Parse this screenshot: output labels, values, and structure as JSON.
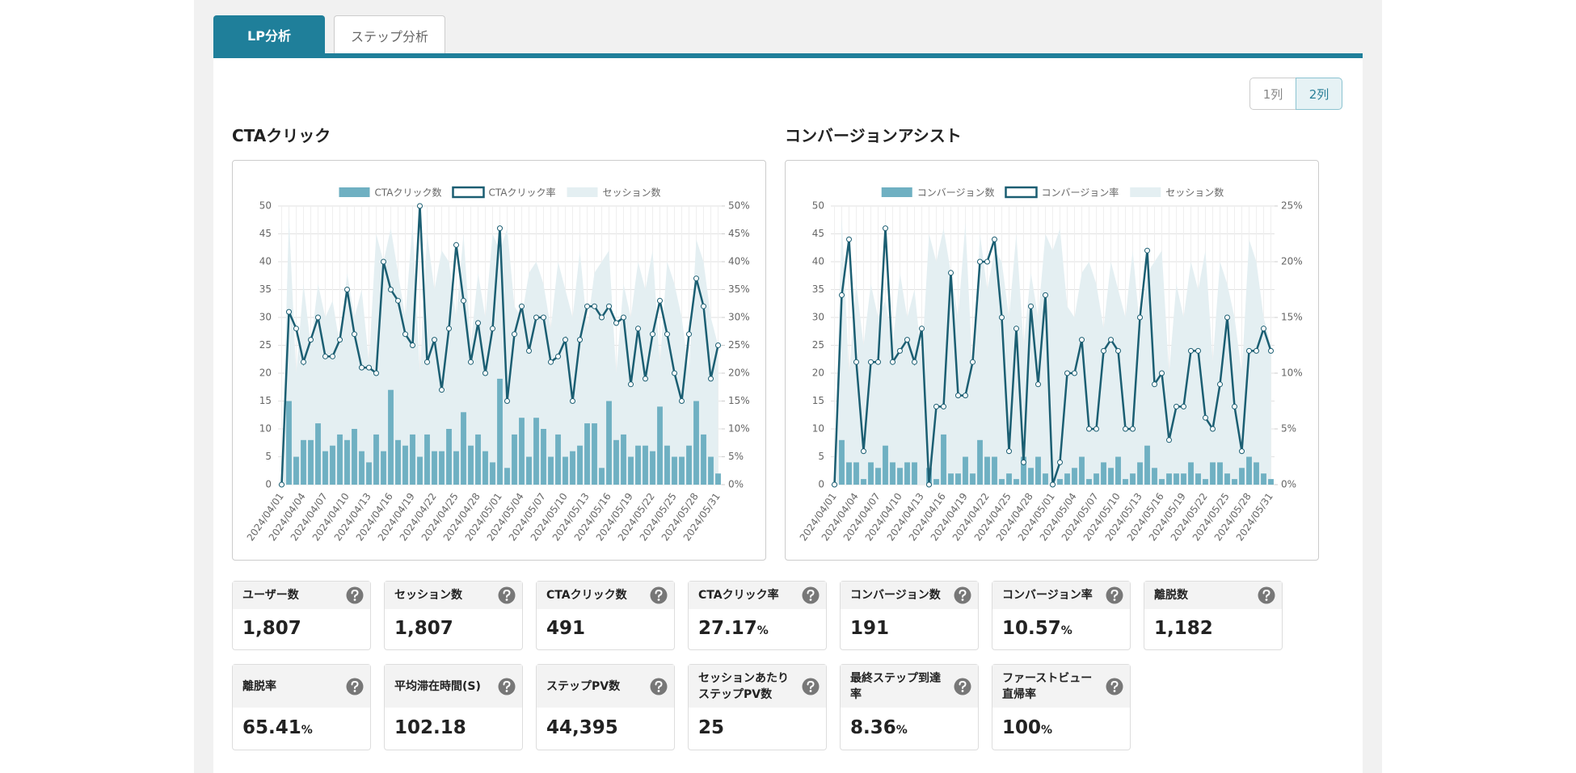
{
  "tabs": [
    "LP分析",
    "ステップ分析"
  ],
  "layout_buttons": [
    "1列",
    "2列"
  ],
  "chart_titles": [
    "CTAクリック",
    "コンバージョンアシスト"
  ],
  "chart_data": [
    {
      "type": "combo",
      "categories": [
        "2024/04/01",
        null,
        null,
        "2024/04/04",
        null,
        null,
        "2024/04/07",
        null,
        null,
        "2024/04/10",
        null,
        null,
        "2024/04/13",
        null,
        null,
        "2024/04/16",
        null,
        null,
        "2024/04/19",
        null,
        null,
        "2024/04/22",
        null,
        null,
        "2024/04/25",
        null,
        null,
        "2024/04/28",
        null,
        null,
        "2024/05/01",
        null,
        null,
        "2024/05/04",
        null,
        null,
        "2024/05/07",
        null,
        null,
        "2024/05/10",
        null,
        null,
        "2024/05/13",
        null,
        null,
        "2024/05/16",
        null,
        null,
        "2024/05/19",
        null,
        null,
        "2024/05/22",
        null,
        null,
        "2024/05/25",
        null,
        null,
        "2024/05/28",
        null,
        null,
        "2024/05/31"
      ],
      "ylim": [
        0,
        50
      ],
      "yticks": [
        0,
        5,
        10,
        15,
        20,
        25,
        30,
        35,
        40,
        45,
        50
      ],
      "y2lim": [
        0,
        50
      ],
      "y2ticks": [
        {
          "value": 0,
          "label": "0%"
        },
        {
          "value": 5,
          "label": "5%"
        },
        {
          "value": 10,
          "label": "10%"
        },
        {
          "value": 15,
          "label": "15%"
        },
        {
          "value": 20,
          "label": "20%"
        },
        {
          "value": 25,
          "label": "25%"
        },
        {
          "value": 30,
          "label": "30%"
        },
        {
          "value": 35,
          "label": "35%"
        },
        {
          "value": 40,
          "label": "40%"
        },
        {
          "value": 45,
          "label": "45%"
        },
        {
          "value": 50,
          "label": "50%"
        }
      ],
      "grid": true,
      "series": [
        {
          "name": "CTAクリック数",
          "type": "bar",
          "color": "#6fb0c2",
          "values": [
            0,
            15,
            5,
            8,
            8,
            11,
            6,
            7,
            9,
            8,
            10,
            6,
            4,
            9,
            6,
            17,
            8,
            7,
            9,
            5,
            9,
            6,
            6,
            10,
            6,
            13,
            7,
            9,
            6,
            4,
            19,
            3,
            9,
            12,
            5,
            12,
            10,
            5,
            9,
            5,
            6,
            7,
            11,
            11,
            3,
            15,
            8,
            9,
            5,
            7,
            7,
            6,
            14,
            7,
            5,
            5,
            7,
            15,
            9,
            5,
            2
          ]
        },
        {
          "name": "CTAクリック率",
          "type": "line",
          "axis": "y2",
          "color": "#1b5e72",
          "values": [
            0,
            31,
            28,
            22,
            26,
            30,
            23,
            23,
            26,
            35,
            27,
            21,
            21,
            20,
            40,
            35,
            33,
            27,
            25,
            50,
            22,
            26,
            17,
            28,
            43,
            33,
            22,
            29,
            20,
            28,
            46,
            15,
            27,
            32,
            24,
            30,
            30,
            22,
            23,
            26,
            15,
            26,
            32,
            32,
            30,
            32,
            29,
            30,
            18,
            28,
            19,
            27,
            33,
            27,
            20,
            15,
            27,
            37,
            32,
            19,
            25
          ]
        },
        {
          "name": "セッション数",
          "type": "area",
          "color": "#e4eff2",
          "values": [
            0,
            48,
            20,
            36,
            25,
            36,
            30,
            33,
            25,
            38,
            30,
            35,
            22,
            45,
            40,
            46,
            38,
            30,
            47,
            20,
            45,
            35,
            42,
            40,
            30,
            45,
            25,
            38,
            30,
            45,
            42,
            46,
            32,
            30,
            38,
            40,
            36,
            28,
            40,
            35,
            30,
            42,
            28,
            38,
            40,
            42,
            20,
            36,
            30,
            40,
            35,
            42,
            22,
            40,
            36,
            30,
            20,
            44,
            40,
            30,
            25
          ]
        }
      ]
    },
    {
      "type": "combo",
      "categories": [
        "2024/04/01",
        null,
        null,
        "2024/04/04",
        null,
        null,
        "2024/04/07",
        null,
        null,
        "2024/04/10",
        null,
        null,
        "2024/04/13",
        null,
        null,
        "2024/04/16",
        null,
        null,
        "2024/04/19",
        null,
        null,
        "2024/04/22",
        null,
        null,
        "2024/04/25",
        null,
        null,
        "2024/04/28",
        null,
        null,
        "2024/05/01",
        null,
        null,
        "2024/05/04",
        null,
        null,
        "2024/05/07",
        null,
        null,
        "2024/05/10",
        null,
        null,
        "2024/05/13",
        null,
        null,
        "2024/05/16",
        null,
        null,
        "2024/05/19",
        null,
        null,
        "2024/05/22",
        null,
        null,
        "2024/05/25",
        null,
        null,
        "2024/05/28",
        null,
        null,
        "2024/05/31"
      ],
      "ylim": [
        0,
        50
      ],
      "yticks": [
        0,
        5,
        10,
        15,
        20,
        25,
        30,
        35,
        40,
        45,
        50
      ],
      "y2lim": [
        0,
        25
      ],
      "y2ticks": [
        {
          "value": 0,
          "label": "0%"
        },
        {
          "value": 5,
          "label": "5%"
        },
        {
          "value": 10,
          "label": "10%"
        },
        {
          "value": 15,
          "label": "15%"
        },
        {
          "value": 20,
          "label": "20%"
        },
        {
          "value": 25,
          "label": "25%"
        }
      ],
      "grid": true,
      "series": [
        {
          "name": "コンバージョン数",
          "type": "bar",
          "color": "#6fb0c2",
          "values": [
            0,
            8,
            4,
            4,
            1,
            4,
            3,
            7,
            4,
            3,
            4,
            4,
            0,
            3,
            1,
            9,
            2,
            2,
            5,
            2,
            8,
            5,
            5,
            1,
            2,
            1,
            5,
            3,
            5,
            2,
            0,
            1,
            2,
            3,
            5,
            1,
            2,
            4,
            3,
            5,
            1,
            2,
            4,
            7,
            3,
            1,
            2,
            2,
            2,
            4,
            2,
            1,
            4,
            4,
            2,
            1,
            3,
            5,
            4,
            2,
            1
          ]
        },
        {
          "name": "コンバージョン率",
          "type": "line",
          "axis": "y2",
          "color": "#1b5e72",
          "values": [
            0,
            17,
            22,
            11,
            3,
            11,
            11,
            23,
            11,
            12,
            13,
            11,
            14,
            0,
            7,
            7,
            19,
            8,
            8,
            11,
            20,
            20,
            22,
            15,
            3,
            14,
            2,
            16,
            9,
            17,
            0,
            2,
            10,
            10,
            13,
            5,
            5,
            12,
            13,
            12,
            5,
            5,
            15,
            21,
            9,
            10,
            4,
            7,
            7,
            12,
            12,
            6,
            5,
            9,
            15,
            7,
            3,
            12,
            12,
            14,
            12
          ]
        },
        {
          "name": "セッション数",
          "type": "area",
          "color": "#e4eff2",
          "values": [
            0,
            48,
            20,
            36,
            25,
            36,
            30,
            33,
            25,
            38,
            30,
            35,
            22,
            45,
            40,
            46,
            38,
            30,
            47,
            20,
            45,
            35,
            42,
            40,
            30,
            45,
            25,
            38,
            30,
            45,
            42,
            46,
            32,
            30,
            38,
            40,
            36,
            28,
            40,
            35,
            30,
            42,
            28,
            38,
            40,
            42,
            20,
            36,
            30,
            40,
            35,
            42,
            22,
            40,
            36,
            30,
            20,
            44,
            40,
            30,
            25
          ]
        }
      ]
    }
  ],
  "cards": [
    {
      "label": "ユーザー数",
      "value": "1,807"
    },
    {
      "label": "セッション数",
      "value": "1,807"
    },
    {
      "label": "CTAクリック数",
      "value": "491"
    },
    {
      "label": "CTAクリック率",
      "value": "27.17",
      "unit": "%"
    },
    {
      "label": "コンバージョン数",
      "value": "191"
    },
    {
      "label": "コンバージョン率",
      "value": "10.57",
      "unit": "%"
    },
    {
      "label": "離脱数",
      "value": "1,182"
    },
    {
      "label": "離脱率",
      "value": "65.41",
      "unit": "%"
    },
    {
      "label": "平均滞在時間(S)",
      "value": "102.18"
    },
    {
      "label": "ステップPV数",
      "value": "44,395"
    },
    {
      "label": "セッションあたり\nステップPV数",
      "value": "25"
    },
    {
      "label": "最終ステップ到達\n率",
      "value": "8.36",
      "unit": "%"
    },
    {
      "label": "ファーストビュー\n直帰率",
      "value": "100",
      "unit": "%"
    }
  ]
}
